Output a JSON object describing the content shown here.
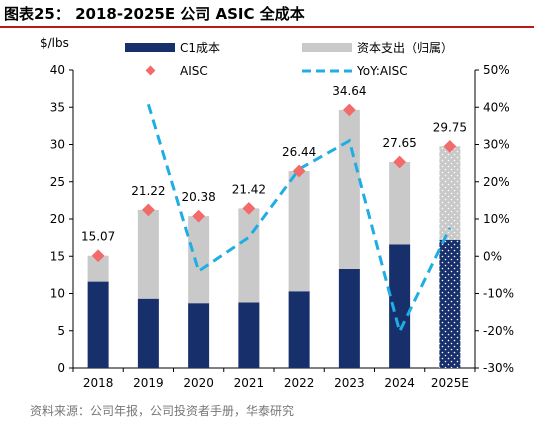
{
  "title": "图表25： 2018-2025E 公司 ASIC 全成本",
  "source": "资料来源：公司年报，公司投资者手册，华泰研究",
  "colors": {
    "c1": "#17306b",
    "other": "#c9c9c9",
    "aisc": "#f26a6a",
    "yoy": "#1eaee4",
    "forecast_dots": "#ffffff"
  },
  "chart_data": {
    "type": "bar",
    "stacked": true,
    "categories": [
      "2018",
      "2019",
      "2020",
      "2021",
      "2022",
      "2023",
      "2024",
      "2025E"
    ],
    "series": [
      {
        "name": "C1成本",
        "type": "bar",
        "axis": "left",
        "values": [
          11.6,
          9.3,
          8.7,
          8.8,
          10.3,
          13.3,
          16.6,
          17.2
        ]
      },
      {
        "name": "资本支出（归属）",
        "type": "bar",
        "axis": "left",
        "values": [
          3.47,
          11.92,
          11.68,
          12.62,
          16.14,
          21.34,
          11.05,
          12.55
        ]
      },
      {
        "name": "AISC",
        "type": "marker",
        "axis": "left",
        "values": [
          15.07,
          21.22,
          20.38,
          21.42,
          26.44,
          34.64,
          27.65,
          29.75
        ],
        "labels": [
          "15.07",
          "21.22",
          "20.38",
          "21.42",
          "26.44",
          "34.64",
          "27.65",
          "29.75"
        ]
      },
      {
        "name": "YoY:AISC",
        "type": "line",
        "axis": "right",
        "values": [
          null,
          40.8,
          -4.0,
          5.1,
          23.4,
          31.0,
          -20.2,
          7.6
        ]
      }
    ],
    "y_left": {
      "label": "$/lbs",
      "min": 0,
      "max": 40,
      "ticks": [
        "0",
        "5",
        "10",
        "15",
        "20",
        "25",
        "30",
        "35",
        "40"
      ]
    },
    "y_right": {
      "min": -30,
      "max": 50,
      "ticks": [
        "-30%",
        "-20%",
        "-10%",
        "0%",
        "10%",
        "20%",
        "30%",
        "40%",
        "50%"
      ]
    },
    "legend": {
      "placement": "top",
      "items": [
        "C1成本",
        "资本支出（归属）",
        "AISC",
        "YoY:AISC"
      ]
    },
    "forecast_category": "2025E",
    "grid": false
  }
}
